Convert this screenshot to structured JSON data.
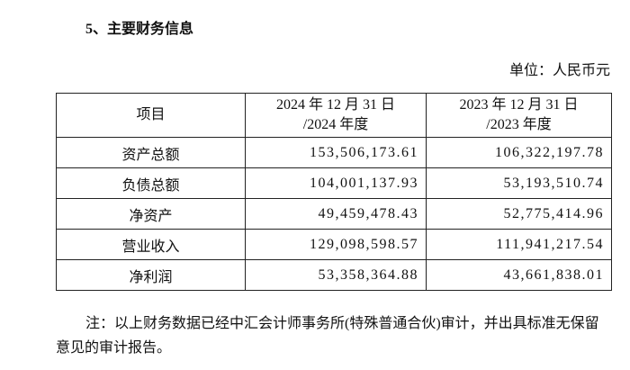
{
  "heading": "5、主要财务信息",
  "unit": "单位：人民币元",
  "table": {
    "header": [
      "项目",
      [
        "2024 年 12 月 31 日",
        "/2024 年度"
      ],
      [
        "2023 年 12 月 31 日",
        "/2023 年度"
      ]
    ],
    "rows": [
      [
        "资产总额",
        "153,506,173.61",
        "106,322,197.78"
      ],
      [
        "负债总额",
        "104,001,137.93",
        "53,193,510.74"
      ],
      [
        "净资产",
        "49,459,478.43",
        "52,775,414.96"
      ],
      [
        "营业收入",
        "129,098,598.57",
        "111,941,217.54"
      ],
      [
        "净利润",
        "53,358,364.88",
        "43,661,838.01"
      ]
    ]
  },
  "note": "注：以上财务数据已经中汇会计师事务所(特殊普通合伙)审计，并出具标准无保留意见的审计报告。"
}
